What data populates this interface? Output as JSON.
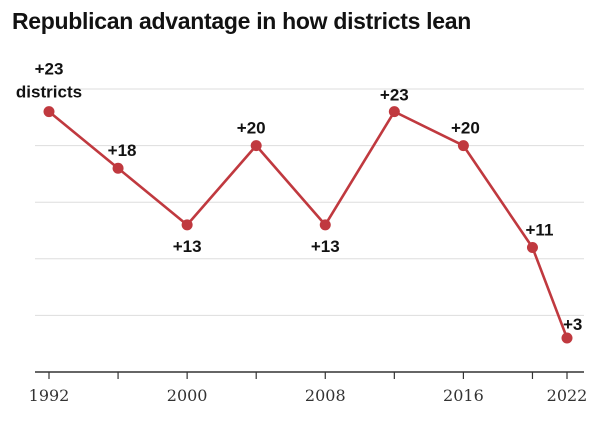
{
  "chart_data": {
    "type": "line",
    "title": "Republican advantage in how districts lean",
    "x": [
      1992,
      1996,
      2000,
      2004,
      2008,
      2012,
      2016,
      2020,
      2022
    ],
    "series": [
      {
        "values": [
          23,
          18,
          13,
          20,
          13,
          23,
          20,
          11,
          3
        ],
        "labels": [
          "+23",
          "+18",
          "+13",
          "+20",
          "+13",
          "+23",
          "+20",
          "+11",
          "+3"
        ]
      }
    ],
    "first_label_suffix": "districts",
    "x_ticks": [
      1992,
      1996,
      2000,
      2004,
      2008,
      2012,
      2016,
      2020,
      2022
    ],
    "x_tick_labels": [
      "1992",
      "",
      "2000",
      "",
      "2008",
      "",
      "2016",
      "",
      "2022"
    ],
    "xlim": [
      1992,
      2022
    ],
    "ylim": [
      0,
      25
    ],
    "y_gridlines": [
      0,
      5,
      10,
      15,
      20,
      25
    ],
    "grid": true,
    "legend": "none",
    "colors": {
      "line": "#c0393f",
      "grid": "#dddddd",
      "axis": "#333333",
      "text": "#121212"
    }
  }
}
